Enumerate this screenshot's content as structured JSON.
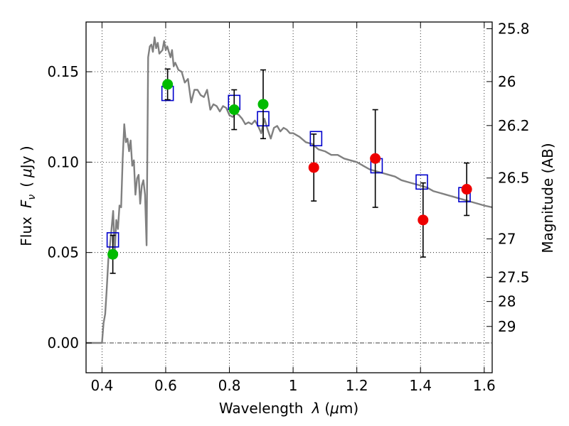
{
  "chart_data": {
    "type": "scatter",
    "xlabel_parts": [
      "Wavelength",
      "λ",
      "(",
      "μ",
      "m)"
    ],
    "ylabel_parts": [
      "Flux",
      "F",
      "ν",
      "(",
      "μ",
      "Jy )"
    ],
    "y2label": "Magnitude (AB)",
    "xlim": [
      0.35,
      1.625
    ],
    "ylim": [
      -0.0165,
      0.1775
    ],
    "grid": true,
    "x_ticks": [
      {
        "v": 0.4,
        "label": "0.4"
      },
      {
        "v": 0.6,
        "label": "0.6"
      },
      {
        "v": 0.8,
        "label": "0.8"
      },
      {
        "v": 1.0,
        "label": "1"
      },
      {
        "v": 1.2,
        "label": "1.2"
      },
      {
        "v": 1.4,
        "label": "1.4"
      },
      {
        "v": 1.6,
        "label": "1.6"
      }
    ],
    "y_ticks": [
      {
        "v": 0.0,
        "label": "0.00"
      },
      {
        "v": 0.05,
        "label": "0.05"
      },
      {
        "v": 0.1,
        "label": "0.10"
      },
      {
        "v": 0.15,
        "label": "0.15"
      }
    ],
    "mag_ticks": [
      {
        "v": 25.8,
        "label": "25.8"
      },
      {
        "v": 26.0,
        "label": "26"
      },
      {
        "v": 26.2,
        "label": "26.2"
      },
      {
        "v": 26.5,
        "label": "26.5"
      },
      {
        "v": 27.0,
        "label": "27"
      },
      {
        "v": 27.5,
        "label": "27.5"
      },
      {
        "v": 28.0,
        "label": "28"
      },
      {
        "v": 29.0,
        "label": "29"
      }
    ],
    "series": [
      {
        "kind": "line",
        "color": "#808080",
        "x": [
          0.35,
          0.4,
          0.405,
          0.41,
          0.415,
          0.42,
          0.425,
          0.43,
          0.435,
          0.44,
          0.445,
          0.45,
          0.455,
          0.46,
          0.465,
          0.47,
          0.475,
          0.48,
          0.485,
          0.49,
          0.495,
          0.5,
          0.505,
          0.51,
          0.515,
          0.52,
          0.525,
          0.53,
          0.535,
          0.54,
          0.545,
          0.55,
          0.555,
          0.56,
          0.565,
          0.57,
          0.575,
          0.58,
          0.585,
          0.59,
          0.595,
          0.6,
          0.605,
          0.61,
          0.615,
          0.62,
          0.625,
          0.63,
          0.64,
          0.65,
          0.66,
          0.67,
          0.68,
          0.69,
          0.7,
          0.71,
          0.72,
          0.73,
          0.74,
          0.75,
          0.76,
          0.77,
          0.78,
          0.79,
          0.8,
          0.81,
          0.82,
          0.83,
          0.84,
          0.85,
          0.86,
          0.87,
          0.88,
          0.89,
          0.9,
          0.91,
          0.92,
          0.93,
          0.94,
          0.95,
          0.96,
          0.97,
          0.98,
          0.99,
          1.0,
          1.02,
          1.04,
          1.06,
          1.08,
          1.1,
          1.12,
          1.14,
          1.16,
          1.18,
          1.2,
          1.22,
          1.24,
          1.26,
          1.28,
          1.3,
          1.32,
          1.34,
          1.36,
          1.38,
          1.4,
          1.42,
          1.44,
          1.46,
          1.48,
          1.5,
          1.52,
          1.54,
          1.56,
          1.58,
          1.6,
          1.625
        ],
        "y": [
          0.0,
          0.0,
          0.011,
          0.016,
          0.03,
          0.046,
          0.054,
          0.063,
          0.073,
          0.05,
          0.068,
          0.063,
          0.076,
          0.075,
          0.102,
          0.121,
          0.111,
          0.113,
          0.106,
          0.112,
          0.098,
          0.101,
          0.082,
          0.091,
          0.093,
          0.077,
          0.087,
          0.09,
          0.082,
          0.054,
          0.158,
          0.164,
          0.165,
          0.161,
          0.169,
          0.163,
          0.166,
          0.16,
          0.161,
          0.162,
          0.167,
          0.162,
          0.164,
          0.161,
          0.158,
          0.162,
          0.153,
          0.155,
          0.151,
          0.15,
          0.144,
          0.146,
          0.133,
          0.14,
          0.14,
          0.137,
          0.136,
          0.14,
          0.129,
          0.132,
          0.131,
          0.128,
          0.131,
          0.13,
          0.126,
          0.125,
          0.127,
          0.126,
          0.124,
          0.121,
          0.122,
          0.121,
          0.123,
          0.12,
          0.116,
          0.124,
          0.118,
          0.113,
          0.119,
          0.12,
          0.117,
          0.119,
          0.118,
          0.116,
          0.116,
          0.114,
          0.111,
          0.11,
          0.107,
          0.106,
          0.104,
          0.104,
          0.102,
          0.101,
          0.1,
          0.098,
          0.096,
          0.095,
          0.094,
          0.093,
          0.092,
          0.09,
          0.089,
          0.088,
          0.087,
          0.086,
          0.084,
          0.083,
          0.082,
          0.081,
          0.08,
          0.079,
          0.078,
          0.077,
          0.076,
          0.075
        ]
      },
      {
        "kind": "model-photometry",
        "color": "#0000cc",
        "marker": "open-square",
        "points": [
          {
            "x": 0.434,
            "y": 0.057
          },
          {
            "x": 0.606,
            "y": 0.138
          },
          {
            "x": 0.815,
            "y": 0.133
          },
          {
            "x": 0.906,
            "y": 0.124
          },
          {
            "x": 1.072,
            "y": 0.113
          },
          {
            "x": 1.262,
            "y": 0.098
          },
          {
            "x": 1.404,
            "y": 0.089
          },
          {
            "x": 1.538,
            "y": 0.082
          }
        ]
      },
      {
        "kind": "optical-photometry",
        "color": "#00bb00",
        "marker": "filled-circle",
        "points": [
          {
            "x": 0.434,
            "y": 0.049,
            "err": 0.0105
          },
          {
            "x": 0.606,
            "y": 0.143,
            "err": 0.0085
          },
          {
            "x": 0.815,
            "y": 0.129,
            "err": 0.011
          },
          {
            "x": 0.906,
            "y": 0.132,
            "err": 0.019
          }
        ]
      },
      {
        "kind": "nir-photometry",
        "color": "#ee0000",
        "marker": "filled-circle",
        "points": [
          {
            "x": 1.065,
            "y": 0.097,
            "err": 0.0185
          },
          {
            "x": 1.258,
            "y": 0.102,
            "err": 0.027
          },
          {
            "x": 1.408,
            "y": 0.068,
            "err": 0.0205
          },
          {
            "x": 1.545,
            "y": 0.085,
            "err": 0.0145
          }
        ]
      }
    ]
  }
}
